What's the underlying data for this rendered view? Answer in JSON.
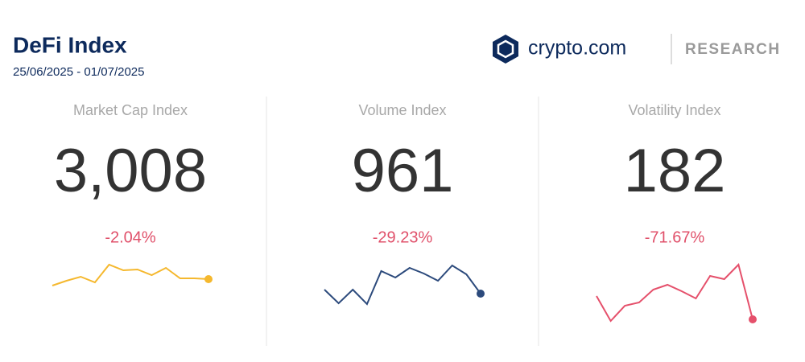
{
  "header": {
    "title": "DeFi Index",
    "date_range": "25/06/2025 - 01/07/2025",
    "brand": "crypto.com",
    "section": "RESEARCH"
  },
  "cards": [
    {
      "label": "Market Cap Index",
      "value": "3,008",
      "change": "-2.04%",
      "color": "#f5b82e",
      "sparkline": [
        45,
        51,
        56,
        49,
        71,
        64,
        65,
        58,
        67,
        54,
        54,
        53
      ]
    },
    {
      "label": "Volume Index",
      "value": "961",
      "change": "-29.23%",
      "color": "#2c4a7c",
      "sparkline": [
        40,
        23,
        40,
        22,
        63,
        55,
        67,
        60,
        51,
        70,
        59,
        35
      ]
    },
    {
      "label": "Volatility Index",
      "value": "182",
      "change": "-71.67%",
      "color": "#e5506b",
      "sparkline": [
        32,
        1,
        20,
        24,
        40,
        46,
        38,
        29,
        57,
        53,
        71,
        3
      ]
    }
  ]
}
